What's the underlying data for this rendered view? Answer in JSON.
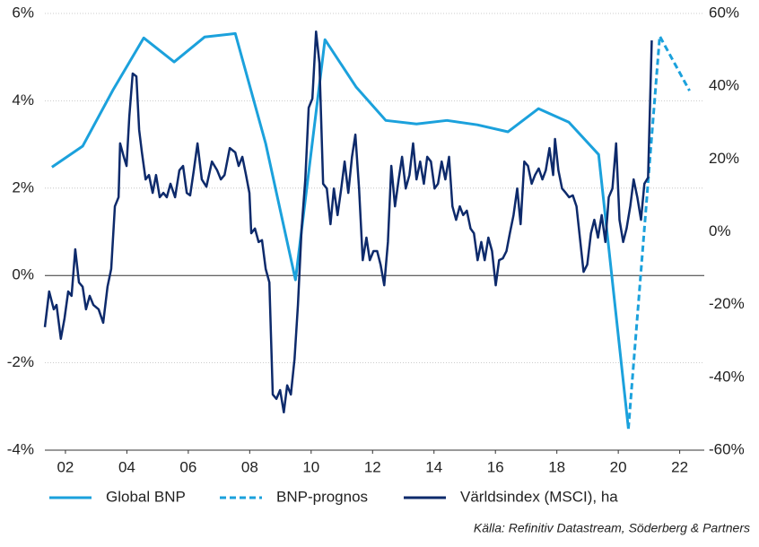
{
  "chart_data": {
    "type": "line",
    "source": "Källa: Refinitiv Datastream, Söderberg & Partners",
    "xlim": [
      2001.33,
      2022.8
    ],
    "xticks": [
      {
        "value": 2002,
        "label": "02"
      },
      {
        "value": 2004,
        "label": "04"
      },
      {
        "value": 2006,
        "label": "06"
      },
      {
        "value": 2008,
        "label": "08"
      },
      {
        "value": 2010,
        "label": "10"
      },
      {
        "value": 2012,
        "label": "12"
      },
      {
        "value": 2014,
        "label": "14"
      },
      {
        "value": 2016,
        "label": "16"
      },
      {
        "value": 2018,
        "label": "18"
      },
      {
        "value": 2020,
        "label": "20"
      },
      {
        "value": 2022,
        "label": "22"
      }
    ],
    "ylim": [
      -4,
      6
    ],
    "yticks": [
      {
        "value": 6,
        "label": "6%"
      },
      {
        "value": 4,
        "label": "4%"
      },
      {
        "value": 2,
        "label": "2%"
      },
      {
        "value": 0,
        "label": "0%"
      },
      {
        "value": -2,
        "label": "-2%"
      },
      {
        "value": -4,
        "label": "-4%"
      }
    ],
    "y2lim": [
      -60,
      60
    ],
    "y2ticks": [
      {
        "value": 60,
        "label": "60%"
      },
      {
        "value": 40,
        "label": "40%"
      },
      {
        "value": 20,
        "label": "20%"
      },
      {
        "value": 0,
        "label": "0%"
      },
      {
        "value": -20,
        "label": "-20%"
      },
      {
        "value": -40,
        "label": "-40%"
      },
      {
        "value": -60,
        "label": "-60%"
      }
    ],
    "grid": true,
    "legend": "bottom",
    "series": [
      {
        "name": "Global BNP",
        "color": "#1ba1dc",
        "dash": false,
        "x": [
          2001.56,
          2002.56,
          2003.55,
          2004.55,
          2005.54,
          2006.53,
          2007.53,
          2008.52,
          2009.49,
          2010.45,
          2011.47,
          2012.43,
          2013.43,
          2014.42,
          2015.41,
          2016.41,
          2017.4,
          2018.39,
          2019.36,
          2020.33
        ],
        "values": [
          2.48,
          2.96,
          4.25,
          5.44,
          4.89,
          5.46,
          5.54,
          3.02,
          -0.1,
          5.4,
          4.31,
          3.55,
          3.47,
          3.55,
          3.45,
          3.29,
          3.82,
          3.51,
          2.77,
          -3.51
        ]
      },
      {
        "name": "BNP-prognos",
        "color": "#1ba1dc",
        "dash": true,
        "x": [
          2020.33,
          2021.35,
          2022.32
        ],
        "values": [
          -3.51,
          5.48,
          4.23
        ]
      },
      {
        "name": "Världsindex (MSCI), ha",
        "color": "#0d2a6b",
        "dash": false,
        "axis": "y2",
        "x": [
          2001.33,
          2001.47,
          2001.62,
          2001.71,
          2001.85,
          2001.97,
          2002.09,
          2002.2,
          2002.32,
          2002.44,
          2002.56,
          2002.67,
          2002.79,
          2002.91,
          2003.08,
          2003.23,
          2003.37,
          2003.49,
          2003.61,
          2003.73,
          2003.78,
          2003.9,
          2003.99,
          2004.08,
          2004.19,
          2004.31,
          2004.4,
          2004.49,
          2004.61,
          2004.72,
          2004.84,
          2004.95,
          2005.07,
          2005.19,
          2005.3,
          2005.42,
          2005.57,
          2005.71,
          2005.83,
          2005.95,
          2006.06,
          2006.18,
          2006.3,
          2006.44,
          2006.59,
          2006.77,
          2006.94,
          2007.06,
          2007.18,
          2007.35,
          2007.53,
          2007.64,
          2007.76,
          2007.88,
          2007.99,
          2008.05,
          2008.17,
          2008.29,
          2008.4,
          2008.52,
          2008.64,
          2008.75,
          2008.87,
          2008.99,
          2009.11,
          2009.22,
          2009.34,
          2009.46,
          2009.57,
          2009.69,
          2009.81,
          2009.92,
          2010.04,
          2010.16,
          2010.27,
          2010.39,
          2010.51,
          2010.63,
          2010.74,
          2010.86,
          2010.98,
          2011.09,
          2011.21,
          2011.33,
          2011.44,
          2011.56,
          2011.68,
          2011.8,
          2011.91,
          2012.03,
          2012.15,
          2012.26,
          2012.38,
          2012.5,
          2012.61,
          2012.73,
          2012.85,
          2012.96,
          2013.08,
          2013.2,
          2013.32,
          2013.43,
          2013.55,
          2013.67,
          2013.78,
          2013.9,
          2014.02,
          2014.13,
          2014.25,
          2014.37,
          2014.49,
          2014.6,
          2014.72,
          2014.84,
          2014.95,
          2015.07,
          2015.19,
          2015.3,
          2015.42,
          2015.54,
          2015.65,
          2015.77,
          2015.89,
          2016.01,
          2016.12,
          2016.24,
          2016.36,
          2016.47,
          2016.59,
          2016.71,
          2016.82,
          2016.94,
          2017.06,
          2017.18,
          2017.29,
          2017.41,
          2017.53,
          2017.64,
          2017.76,
          2017.88,
          2017.94,
          2018.05,
          2018.17,
          2018.29,
          2018.4,
          2018.52,
          2018.64,
          2018.75,
          2018.87,
          2018.99,
          2019.11,
          2019.22,
          2019.34,
          2019.46,
          2019.58,
          2019.69,
          2019.81,
          2019.93,
          2020.04,
          2020.16,
          2020.27,
          2020.39,
          2020.5,
          2020.62,
          2020.74,
          2020.85,
          2020.97,
          2021.09
        ],
        "values": [
          -26.2,
          -16.4,
          -21.3,
          -20.1,
          -29.4,
          -23.8,
          -16.4,
          -17.6,
          -4.8,
          -13.9,
          -15.1,
          -21.3,
          -17.6,
          -20.1,
          -21.3,
          -25.0,
          -15.1,
          -10.2,
          7.0,
          9.5,
          24.3,
          20.6,
          18.1,
          31.7,
          43.5,
          42.7,
          28.0,
          21.8,
          14.4,
          15.6,
          10.7,
          15.6,
          9.5,
          10.7,
          9.5,
          13.2,
          9.5,
          16.9,
          18.1,
          10.7,
          10.0,
          16.9,
          24.3,
          14.4,
          12.4,
          19.3,
          16.9,
          14.4,
          15.6,
          23.0,
          21.8,
          18.1,
          20.6,
          15.6,
          10.7,
          -0.4,
          0.9,
          -2.8,
          -2.3,
          -10.2,
          -13.9,
          -44.7,
          -45.9,
          -43.5,
          -49.6,
          -42.2,
          -44.7,
          -34.9,
          -20.1,
          0.9,
          14.4,
          34.1,
          36.6,
          55.0,
          46.4,
          13.2,
          11.9,
          2.1,
          11.9,
          4.6,
          11.9,
          19.3,
          10.7,
          20.6,
          26.7,
          11.9,
          -7.8,
          -1.6,
          -7.8,
          -5.3,
          -5.3,
          -9.0,
          -14.7,
          -2.8,
          18.1,
          7.0,
          14.4,
          20.6,
          11.9,
          15.6,
          24.3,
          14.4,
          19.3,
          13.2,
          20.6,
          19.3,
          11.9,
          13.2,
          19.3,
          14.4,
          20.6,
          7.0,
          3.3,
          7.0,
          4.6,
          5.8,
          0.9,
          -0.4,
          -7.8,
          -2.8,
          -7.8,
          -1.6,
          -5.3,
          -14.7,
          -7.8,
          -7.3,
          -5.3,
          -0.4,
          4.6,
          11.9,
          2.1,
          19.3,
          18.1,
          13.2,
          15.6,
          17.4,
          14.4,
          16.9,
          23.0,
          15.6,
          25.5,
          16.9,
          11.9,
          10.7,
          9.5,
          10.0,
          7.0,
          -1.6,
          -11.0,
          -9.0,
          -0.4,
          3.3,
          -1.6,
          4.6,
          -2.8,
          9.5,
          11.9,
          24.3,
          3.3,
          -2.8,
          0.9,
          7.0,
          14.4,
          9.5,
          3.3,
          13.2,
          14.9,
          52.6
        ]
      }
    ]
  }
}
